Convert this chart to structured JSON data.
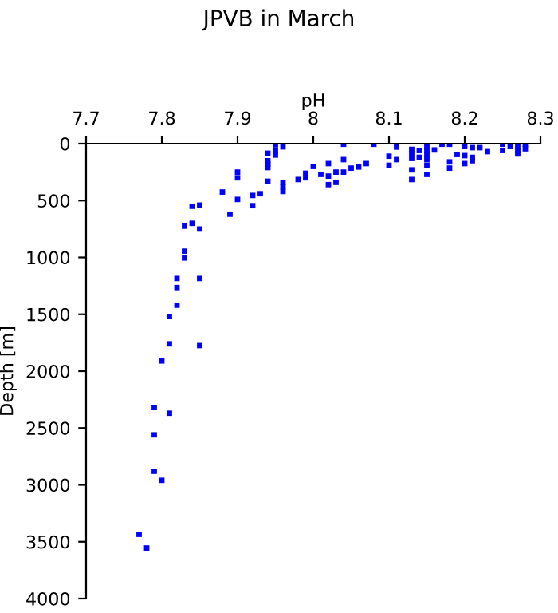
{
  "chart_data": {
    "type": "scatter",
    "title": "JPVB in March",
    "xlabel": "pH",
    "ylabel": "Depth [m]",
    "xlim": [
      7.7,
      8.3
    ],
    "xticks": [
      7.7,
      7.8,
      7.9,
      8,
      8.1,
      8.2,
      8.3
    ],
    "ylim": [
      4000,
      0
    ],
    "yticks": [
      0,
      500,
      1000,
      1500,
      2000,
      2500,
      3000,
      3500,
      4000
    ],
    "grid": false,
    "marker": "square",
    "series": [
      {
        "color": "#0000ff",
        "x": [
          7.95,
          7.96,
          7.94,
          7.94,
          7.94,
          7.94,
          7.95,
          7.95,
          7.9,
          7.9,
          7.94,
          7.96,
          7.96,
          7.96,
          7.98,
          7.99,
          7.99,
          8.0,
          7.88,
          7.9,
          7.92,
          7.93,
          7.92,
          7.89,
          7.84,
          7.85,
          7.84,
          7.83,
          7.85,
          7.83,
          7.83,
          7.82,
          7.85,
          7.82,
          7.82,
          7.81,
          7.81,
          7.85,
          7.8,
          7.79,
          7.81,
          7.79,
          7.79,
          7.8,
          7.77,
          7.78,
          8.01,
          8.02,
          8.02,
          8.02,
          8.03,
          8.03,
          8.04,
          8.04,
          8.04,
          8.05,
          8.06,
          8.07,
          8.08,
          8.1,
          8.1,
          8.11,
          8.11,
          8.13,
          8.13,
          8.13,
          8.13,
          8.13,
          8.14,
          8.14,
          8.15,
          8.15,
          8.15,
          8.15,
          8.15,
          8.15,
          8.16,
          8.17,
          8.18,
          8.18,
          8.18,
          8.19,
          8.2,
          8.2,
          8.2,
          8.21,
          8.21,
          8.21,
          8.22,
          8.23,
          8.25,
          8.25,
          8.26,
          8.27,
          8.27,
          8.27,
          8.28,
          8.28
        ],
        "values": [
          10,
          28,
          84,
          150,
          180,
          210,
          60,
          100,
          250,
          300,
          330,
          340,
          380,
          420,
          315,
          260,
          300,
          200,
          425,
          490,
          455,
          440,
          545,
          620,
          550,
          540,
          700,
          725,
          750,
          945,
          1005,
          1185,
          1185,
          1265,
          1420,
          1520,
          1760,
          1775,
          1910,
          2320,
          2370,
          2560,
          2880,
          2960,
          3435,
          3555,
          270,
          175,
          285,
          360,
          250,
          340,
          5,
          140,
          250,
          215,
          205,
          175,
          5,
          110,
          190,
          30,
          140,
          50,
          90,
          130,
          230,
          315,
          60,
          120,
          25,
          60,
          100,
          140,
          190,
          270,
          55,
          5,
          5,
          160,
          215,
          95,
          25,
          105,
          175,
          35,
          120,
          150,
          35,
          70,
          5,
          60,
          25,
          25,
          60,
          90,
          5,
          45
        ]
      }
    ]
  }
}
